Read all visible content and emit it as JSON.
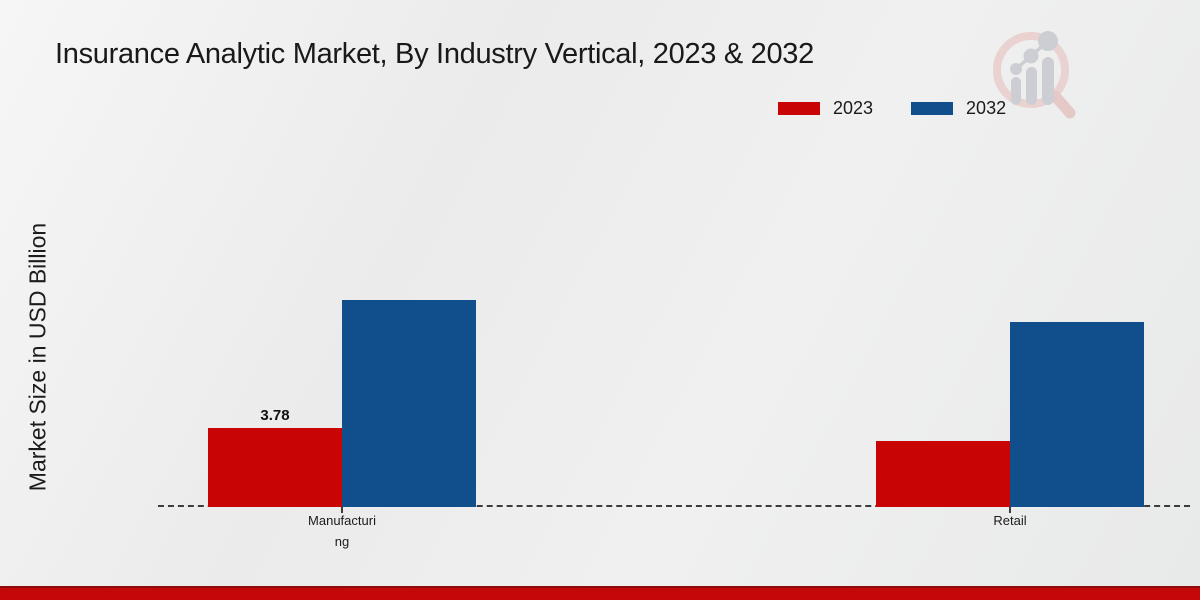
{
  "chart_data": {
    "type": "bar",
    "title": "Insurance Analytic Market, By Industry Vertical, 2023 & 2032",
    "ylabel": "Market Size in USD Billion",
    "xlabel": "",
    "categories": [
      "Manufacturing",
      "Retail"
    ],
    "category_label_lines": [
      [
        "Manufacturi",
        "ng"
      ],
      [
        "Retail"
      ]
    ],
    "series": [
      {
        "name": "2023",
        "color": "#c80404",
        "values": [
          3.78,
          3.16
        ],
        "bar_labels": [
          "3.78",
          ""
        ]
      },
      {
        "name": "2032",
        "color": "#104f8c",
        "values": [
          9.9,
          8.85
        ],
        "bar_labels": [
          "",
          ""
        ]
      }
    ],
    "ylim": [
      0,
      17
    ],
    "grid": false,
    "legend_position": "top-right",
    "x_axis_style": "dashed-line",
    "axis_color": "#3c3c3c"
  },
  "branding": {
    "logo_icon": "magnifier-bar-chart-watermark",
    "logo_ring_color": "#e9d2d0",
    "logo_glyph_color": "#cdced3",
    "footer_bar_color": "#c40707"
  }
}
